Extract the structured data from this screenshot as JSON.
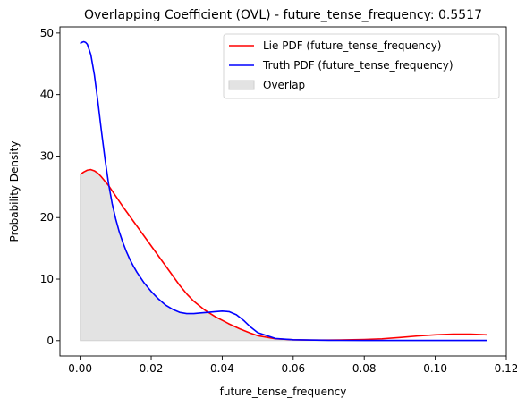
{
  "chart_data": {
    "type": "line",
    "title": "Overlapping Coefficient (OVL) - future_tense_frequency: 0.5517",
    "xlabel": "future_tense_frequency",
    "ylabel": "Probability Density",
    "xlim": [
      -0.0057,
      0.12
    ],
    "ylim": [
      -2.5,
      51
    ],
    "xticks": [
      0.0,
      0.02,
      0.04,
      0.06,
      0.08,
      0.1,
      0.12
    ],
    "xtick_labels": [
      "0.00",
      "0.02",
      "0.04",
      "0.06",
      "0.08",
      "0.10",
      "0.12"
    ],
    "yticks": [
      0,
      10,
      20,
      30,
      40,
      50
    ],
    "ytick_labels": [
      "0",
      "10",
      "20",
      "30",
      "40",
      "50"
    ],
    "legend_position": "top-right",
    "grid": false,
    "series": [
      {
        "name": "Lie PDF (future_tense_frequency)",
        "color": "#ff0000",
        "x": [
          0.0,
          0.001,
          0.002,
          0.003,
          0.004,
          0.005,
          0.006,
          0.008,
          0.01,
          0.012,
          0.015,
          0.018,
          0.02,
          0.022,
          0.025,
          0.028,
          0.03,
          0.032,
          0.035,
          0.038,
          0.04,
          0.042,
          0.045,
          0.048,
          0.05,
          0.055,
          0.06,
          0.065,
          0.07,
          0.075,
          0.08,
          0.085,
          0.09,
          0.095,
          0.1,
          0.105,
          0.11,
          0.1145
        ],
        "y": [
          27.0,
          27.4,
          27.7,
          27.8,
          27.6,
          27.2,
          26.6,
          25.2,
          23.5,
          21.8,
          19.4,
          17.0,
          15.4,
          13.8,
          11.4,
          9.0,
          7.6,
          6.4,
          5.0,
          3.9,
          3.3,
          2.7,
          1.9,
          1.2,
          0.8,
          0.3,
          0.15,
          0.1,
          0.1,
          0.12,
          0.18,
          0.3,
          0.5,
          0.75,
          0.95,
          1.05,
          1.05,
          0.95
        ]
      },
      {
        "name": "Truth PDF (future_tense_frequency)",
        "color": "#0000ff",
        "x": [
          0.0,
          0.0005,
          0.001,
          0.0015,
          0.002,
          0.003,
          0.004,
          0.005,
          0.006,
          0.007,
          0.008,
          0.009,
          0.01,
          0.011,
          0.012,
          0.013,
          0.014,
          0.015,
          0.016,
          0.018,
          0.02,
          0.022,
          0.024,
          0.026,
          0.028,
          0.03,
          0.032,
          0.034,
          0.036,
          0.038,
          0.04,
          0.042,
          0.044,
          0.046,
          0.048,
          0.05,
          0.055,
          0.06,
          0.07,
          0.08,
          0.09,
          0.1,
          0.11,
          0.1145
        ],
        "y": [
          48.3,
          48.5,
          48.6,
          48.5,
          48.2,
          46.5,
          43.2,
          38.8,
          34.0,
          29.5,
          25.5,
          22.3,
          19.8,
          17.7,
          16.0,
          14.5,
          13.2,
          12.1,
          11.1,
          9.4,
          8.0,
          6.8,
          5.8,
          5.1,
          4.6,
          4.4,
          4.4,
          4.5,
          4.6,
          4.7,
          4.8,
          4.7,
          4.2,
          3.3,
          2.2,
          1.3,
          0.35,
          0.15,
          0.05,
          0.03,
          0.03,
          0.03,
          0.03,
          0.03
        ]
      }
    ],
    "overlap": {
      "name": "Overlap",
      "color": "#e3e3e3",
      "edge_color": "#cfcfcf"
    },
    "axis_color": "#000000"
  }
}
